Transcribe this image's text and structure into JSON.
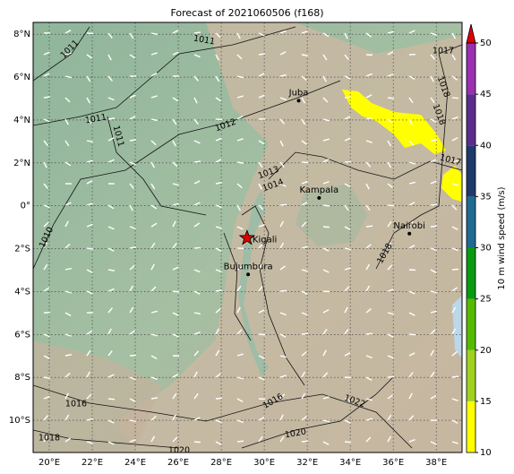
{
  "title": "Forecast of 2021060506 (f168)",
  "map": {
    "lon_range": [
      19.25,
      39.2
    ],
    "lat_range": [
      -11.5,
      8.55
    ],
    "xticks": [
      {
        "value": 20,
        "label": "20°E"
      },
      {
        "value": 22,
        "label": "22°E"
      },
      {
        "value": 24,
        "label": "24°E"
      },
      {
        "value": 26,
        "label": "26°E"
      },
      {
        "value": 28,
        "label": "28°E"
      },
      {
        "value": 30,
        "label": "30°E"
      },
      {
        "value": 32,
        "label": "32°E"
      },
      {
        "value": 34,
        "label": "34°E"
      },
      {
        "value": 36,
        "label": "36°E"
      },
      {
        "value": 38,
        "label": "38°E"
      }
    ],
    "yticks": [
      {
        "value": 8,
        "label": "8°N"
      },
      {
        "value": 6,
        "label": "6°N"
      },
      {
        "value": 4,
        "label": "4°N"
      },
      {
        "value": 2,
        "label": "2°N"
      },
      {
        "value": 0,
        "label": "0°"
      },
      {
        "value": -2,
        "label": "2°S"
      },
      {
        "value": -4,
        "label": "4°S"
      },
      {
        "value": -6,
        "label": "6°S"
      },
      {
        "value": -8,
        "label": "8°S"
      },
      {
        "value": -10,
        "label": "10°S"
      }
    ]
  },
  "cities": [
    {
      "name": "Juba",
      "lon": 31.6,
      "lat": 4.9
    },
    {
      "name": "Kampala",
      "lon": 32.55,
      "lat": 0.37
    },
    {
      "name": "Kigali",
      "lon": 29.2,
      "lat": -1.5
    },
    {
      "name": "Bujumbura",
      "lon": 29.25,
      "lat": -3.2
    },
    {
      "name": "Nairobi",
      "lon": 36.75,
      "lat": -1.3
    }
  ],
  "contour_labels": [
    "1011",
    "1011",
    "1011",
    "1011",
    "1012",
    "1013",
    "1014",
    "1010",
    "1016",
    "1018",
    "1016",
    "1020",
    "1022",
    "1017",
    "1018",
    "1018",
    "1017",
    "1018",
    "1020"
  ],
  "colorbar": {
    "label": "10 m wind speed (m/s)",
    "range": [
      10,
      50
    ],
    "ticks": [
      10,
      15,
      20,
      25,
      30,
      35,
      40,
      45,
      50
    ],
    "colors": [
      "#ffff00",
      "#a0d020",
      "#55bb00",
      "#0a9a10",
      "#1f6a90",
      "#1e3a6a",
      "#5a2d8c",
      "#9a30b0"
    ],
    "extend_color": "#e00000"
  }
}
